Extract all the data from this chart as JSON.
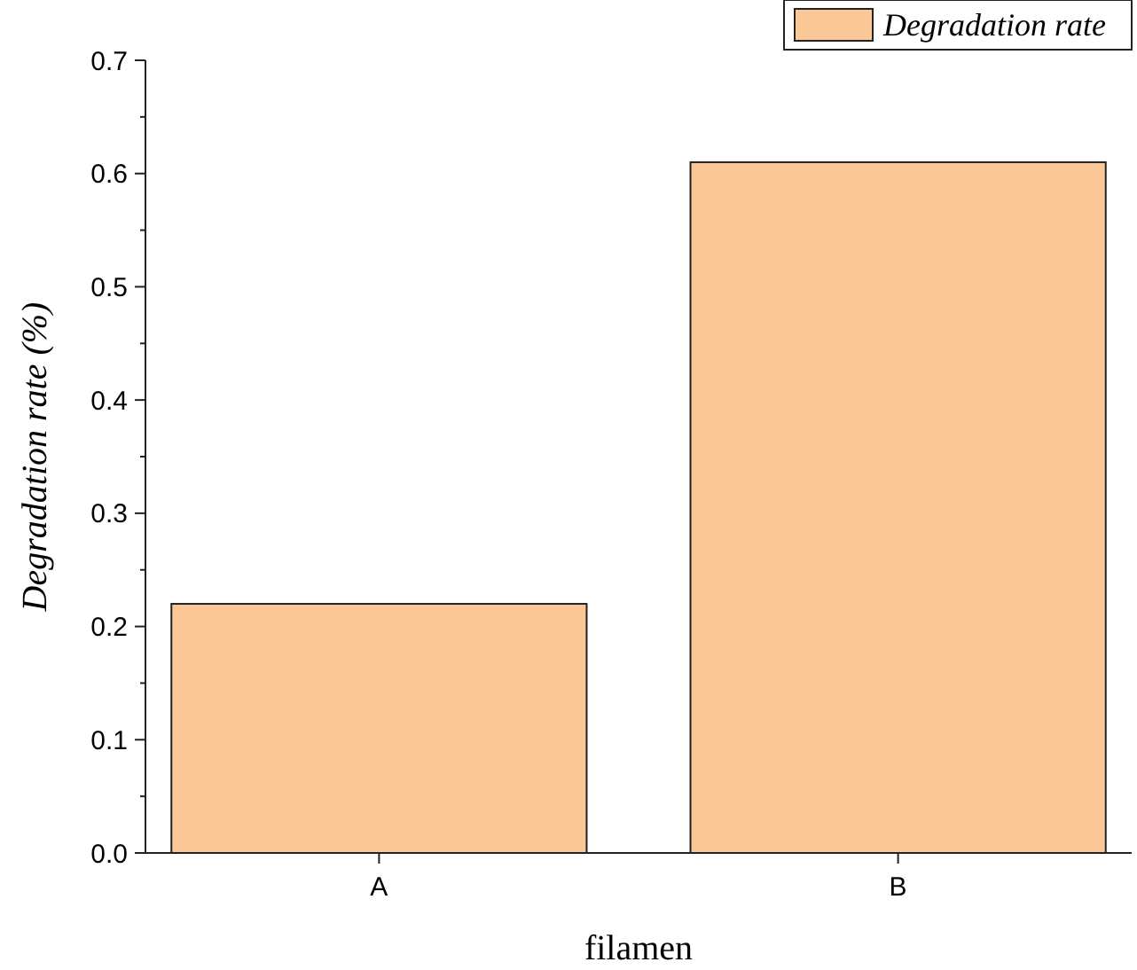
{
  "chart_data": {
    "type": "bar",
    "xlabel": "filamen",
    "ylabel": "Degradation rate (%)",
    "categories": [
      "A",
      "B"
    ],
    "series": [
      {
        "name": "Degradation rate",
        "color": "#fbc797",
        "values": [
          0.22,
          0.61
        ]
      }
    ],
    "ylim": [
      0,
      0.7
    ],
    "yticks": [
      {
        "value": 0,
        "label": "0.0"
      },
      0.1,
      0.2,
      0.3,
      0.4,
      0.5,
      0.6,
      0.7
    ],
    "legend": "top right",
    "grid": false
  }
}
